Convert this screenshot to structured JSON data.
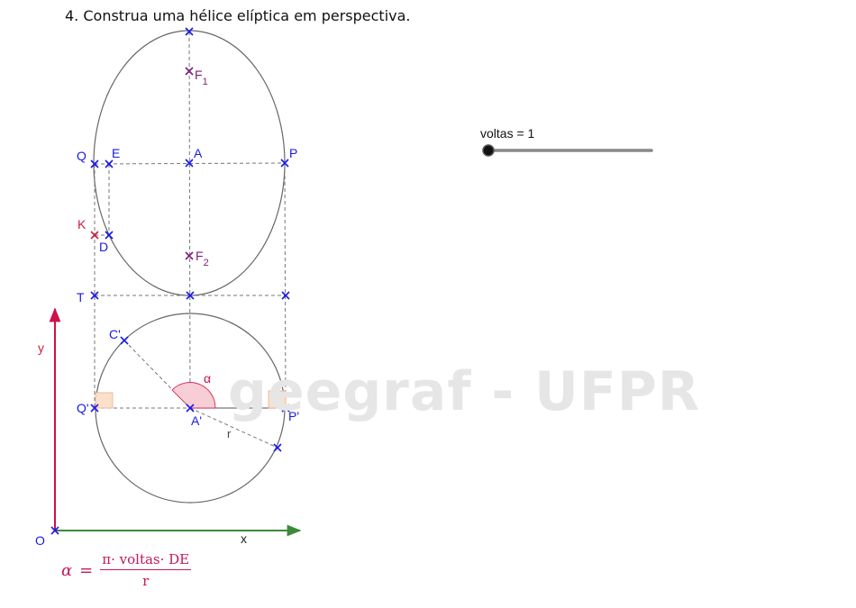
{
  "title": "4.  Construa uma hélice elíptica em perspectiva.",
  "watermark": "geegraf - UFPR",
  "slider": {
    "label": "voltas = 1",
    "value": 1
  },
  "formula": {
    "lhs": "α",
    "eq": "=",
    "numerator": "π· voltas· DE",
    "denominator": "r"
  },
  "points": {
    "F1": "F",
    "F1_sub": "1",
    "F2": "F",
    "F2_sub": "2",
    "A": "A",
    "P": "P",
    "Q": "Q",
    "E": "E",
    "K": "K",
    "D": "D",
    "T": "T",
    "C_prime": "C'",
    "Q_prime": "Q'",
    "P_prime": "P'",
    "A_prime": "A'",
    "O": "O"
  },
  "labels": {
    "alpha": "α",
    "r": "r",
    "x_axis": "x",
    "y_axis": "y"
  },
  "colors": {
    "point": "#1a1ae6",
    "point_purple": "#7b1f7b",
    "point_red": "#cc2040",
    "curve": "#666666",
    "dashed": "#777777",
    "x_axis": "#3a8a3a",
    "y_axis": "#d01048",
    "angle_fill": "#f7cdd6",
    "right_angle_fill": "#fbe0cc",
    "formula": "#c2185b"
  }
}
